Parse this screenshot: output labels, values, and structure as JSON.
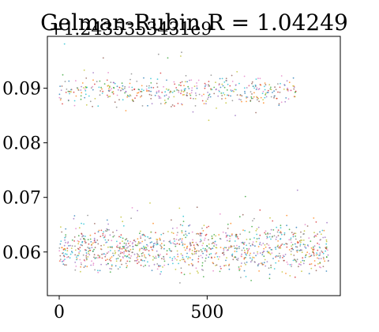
{
  "chart_data": {
    "type": "scatter",
    "title": "Gelman-Rubin R = 1.04249",
    "offset_label": "+1.2435353431e9",
    "xlabel": "",
    "ylabel": "",
    "xlim": [
      -40,
      950
    ],
    "ylim": [
      0.052,
      0.0995
    ],
    "x_ticks": [
      0,
      500
    ],
    "x_tick_labels": [
      "0",
      "500"
    ],
    "y_ticks": [
      0.06,
      0.07,
      0.08,
      0.09
    ],
    "y_tick_labels": [
      "0.06",
      "0.07",
      "0.08",
      "0.09"
    ],
    "grid": false,
    "legend": "none",
    "n_iterations": 920,
    "clusters": [
      {
        "name": "",
        "y_center": 0.0605,
        "y_spread": 0.0022,
        "x_range": [
          0,
          910
        ],
        "points_per_chain": 110
      },
      {
        "name": "",
        "y_center": 0.0895,
        "y_spread": 0.0013,
        "x_range": [
          0,
          800
        ],
        "points_per_chain": 45
      }
    ],
    "chain_colors": [
      "#1f77b4",
      "#ff7f0e",
      "#2ca02c",
      "#d62728",
      "#9467bd",
      "#8c564b",
      "#e377c2",
      "#7f7f7f",
      "#bcbd22",
      "#17becf"
    ]
  }
}
